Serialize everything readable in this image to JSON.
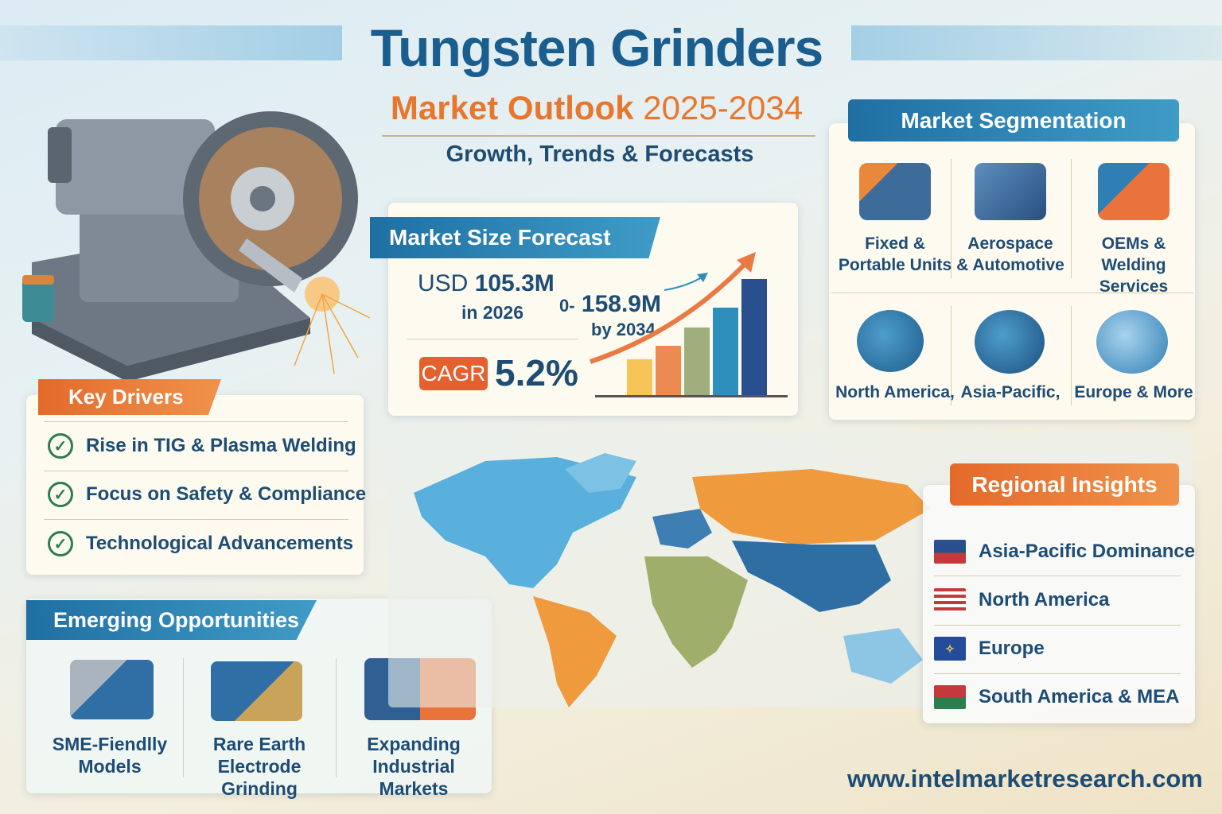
{
  "header": {
    "title": "Tungsten Grinders",
    "subtitle_prefix": "Market Outlook ",
    "subtitle_years": "2025-2034",
    "tagline": "Growth, Trends & Forecasts"
  },
  "forecast": {
    "heading": "Market Size Forecast",
    "start_currency": "USD",
    "start_value": "105.3M",
    "start_year": "in 2026",
    "end_prefix": "0-",
    "end_value": "158.9M",
    "end_year": "by 2034",
    "cagr_label": "CAGR",
    "cagr_value": "5.2%"
  },
  "segmentation": {
    "heading": "Market Segmentation",
    "items": [
      {
        "line1": "Fixed &",
        "line2": "Portable Units",
        "icon": "portable-grinder-icon"
      },
      {
        "line1": "Aerospace",
        "line2": "& Automotive",
        "icon": "aerospace-machine-icon"
      },
      {
        "line1": "OEMs &",
        "line2": "Welding Services",
        "icon": "welding-service-icon"
      },
      {
        "line1": "North America,",
        "line2": "",
        "icon": "north-america-globe-icon"
      },
      {
        "line1": "Asia-Pacific,",
        "line2": "",
        "icon": "asia-pacific-globe-icon"
      },
      {
        "line1": "Europe & More",
        "line2": "",
        "icon": "europe-globe-icon"
      }
    ]
  },
  "drivers": {
    "heading": "Key Drivers",
    "items": [
      "Rise in TIG & Plasma Welding",
      "Focus on Safety & Compliance",
      "Technological Advancements"
    ]
  },
  "opportunities": {
    "heading": "Emerging Opportunities",
    "items": [
      {
        "line1": "SME-Fiendlly",
        "line2": "Models"
      },
      {
        "line1": "Rare Earth",
        "line2": "Electrode Grinding"
      },
      {
        "line1": "Expanding",
        "line2": "Industrial Markets"
      }
    ]
  },
  "regional": {
    "heading": "Regional Insights",
    "items": [
      "Asia-Pacific Dominance",
      "North America",
      "Europe",
      "South America & MEA"
    ]
  },
  "footer": {
    "url": "www.intelmarketresearch.com"
  },
  "colors": {
    "brand_blue": "#1a5d8f",
    "accent_orange": "#e8772e",
    "check_green": "#2e7d4f"
  }
}
